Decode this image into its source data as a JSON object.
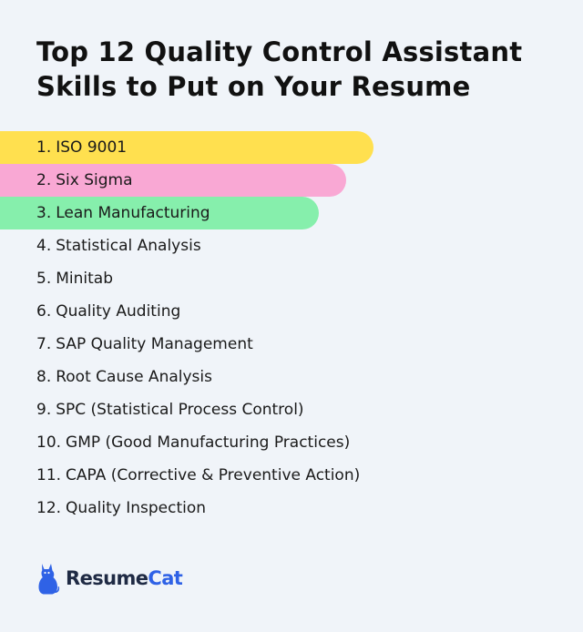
{
  "title": "Top 12 Quality Control Assistant Skills to Put on Your Resume",
  "colors": {
    "background": "#f0f4f9",
    "highlight_1": "#ffe04f",
    "highlight_2": "#f9a8d4",
    "highlight_3": "#86efac",
    "brand_blue": "#2f62e6",
    "brand_dark": "#1f2a44"
  },
  "skills": [
    {
      "number": "1.",
      "name": "ISO 9001"
    },
    {
      "number": "2.",
      "name": "Six Sigma"
    },
    {
      "number": "3.",
      "name": "Lean Manufacturing"
    },
    {
      "number": "4.",
      "name": "Statistical Analysis"
    },
    {
      "number": "5.",
      "name": "Minitab"
    },
    {
      "number": "6.",
      "name": "Quality Auditing"
    },
    {
      "number": "7.",
      "name": "SAP Quality Management"
    },
    {
      "number": "8.",
      "name": "Root Cause Analysis"
    },
    {
      "number": "9.",
      "name": "SPC (Statistical Process Control)"
    },
    {
      "number": "10.",
      "name": "GMP (Good Manufacturing Practices)"
    },
    {
      "number": "11.",
      "name": "CAPA (Corrective & Preventive Action)"
    },
    {
      "number": "12.",
      "name": "Quality Inspection"
    }
  ],
  "logo": {
    "icon": "cat-icon",
    "text_primary": "Resume",
    "text_accent": "Cat"
  }
}
